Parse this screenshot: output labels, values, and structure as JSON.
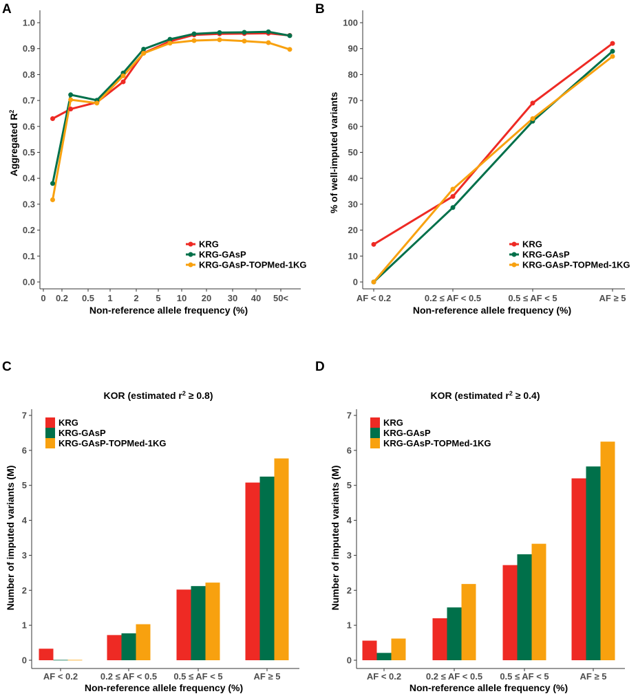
{
  "colors": {
    "KRG": "#ee2a24",
    "KRG-GAsP": "#00704a",
    "KRG-GAsP-TOPMed-1KG": "#f8a10f"
  },
  "chart_data": [
    {
      "panel": "A",
      "type": "line",
      "title": "",
      "xlabel": "Non-reference allele frequency (%)",
      "ylabel_base": "Aggregated R",
      "ylabel_sup": "2",
      "ylim": [
        0,
        1
      ],
      "yticks": [
        "0.0",
        "0.1",
        "0.2",
        "0.3",
        "0.4",
        "0.5",
        "0.6",
        "0.7",
        "0.8",
        "0.9",
        "1.0"
      ],
      "xticks": [
        "0",
        "0.2",
        "0.5",
        "1",
        "2",
        "5",
        "10",
        "20",
        "30",
        "40",
        "50<"
      ],
      "x": [
        "0.1",
        "0.3",
        "0.7",
        "1.5",
        "3",
        "7.5",
        "15",
        "25",
        "35",
        "45",
        "55"
      ],
      "series": [
        {
          "name": "KRG",
          "values": [
            0.63,
            0.667,
            0.693,
            0.772,
            0.883,
            0.928,
            0.953,
            0.957,
            0.958,
            0.959,
            0.951
          ]
        },
        {
          "name": "KRG-GAsP",
          "values": [
            0.38,
            0.722,
            0.701,
            0.806,
            0.898,
            0.936,
            0.957,
            0.962,
            0.963,
            0.965,
            0.95
          ]
        },
        {
          "name": "KRG-GAsP-TOPMed-1KG",
          "values": [
            0.317,
            0.703,
            0.69,
            0.795,
            0.882,
            0.921,
            0.931,
            0.934,
            0.929,
            0.923,
            0.897
          ]
        }
      ],
      "legend": [
        "KRG",
        "KRG-GAsP",
        "KRG-GAsP-TOPMed-1KG"
      ]
    },
    {
      "panel": "B",
      "type": "line",
      "title": "",
      "xlabel": "Non-reference allele frequency (%)",
      "ylabel": "% of well-imputed variants",
      "ylim": [
        0,
        100
      ],
      "yticks": [
        "0",
        "10",
        "20",
        "30",
        "40",
        "50",
        "60",
        "70",
        "80",
        "90",
        "100"
      ],
      "categories": [
        "AF < 0.2",
        "0.2 ≤ AF < 0.5",
        "0.5 ≤ AF < 5",
        "AF ≥ 5"
      ],
      "series": [
        {
          "name": "KRG",
          "values": [
            14.5,
            33,
            69,
            92
          ]
        },
        {
          "name": "KRG-GAsP",
          "values": [
            0,
            28.7,
            62,
            89
          ]
        },
        {
          "name": "KRG-GAsP-TOPMed-1KG",
          "values": [
            0,
            35.8,
            63,
            87
          ]
        }
      ],
      "legend": [
        "KRG",
        "KRG-GAsP",
        "KRG-GAsP-TOPMed-1KG"
      ]
    },
    {
      "panel": "C",
      "type": "bar",
      "title_prefix": "KOR (estimated r",
      "title_sup": "2",
      "title_suffix": " ≥ 0.8)",
      "xlabel": "Non-reference allele frequency (%)",
      "ylabel": "Number of imputed variants (M)",
      "ylim": [
        0,
        7
      ],
      "yticks": [
        "0",
        "1",
        "2",
        "3",
        "4",
        "5",
        "6",
        "7"
      ],
      "categories": [
        "AF < 0.2",
        "0.2 ≤ AF < 0.5",
        "0.5 ≤ AF < 5",
        "AF ≥ 5"
      ],
      "series": [
        {
          "name": "KRG",
          "values": [
            0.33,
            0.72,
            2.02,
            5.08
          ]
        },
        {
          "name": "KRG-GAsP",
          "values": [
            0.01,
            0.77,
            2.12,
            5.25
          ]
        },
        {
          "name": "KRG-GAsP-TOPMed-1KG",
          "values": [
            0.01,
            1.03,
            2.22,
            5.77
          ]
        }
      ],
      "legend": [
        "KRG",
        "KRG-GAsP",
        "KRG-GAsP-TOPMed-1KG"
      ]
    },
    {
      "panel": "D",
      "type": "bar",
      "title_prefix": "KOR (estimated r",
      "title_sup": "2",
      "title_suffix": " ≥ 0.4)",
      "xlabel": "Non-reference allele frequency (%)",
      "ylabel": "Number of imputed variants (M)",
      "ylim": [
        0,
        7
      ],
      "yticks": [
        "0",
        "1",
        "2",
        "3",
        "4",
        "5",
        "6",
        "7"
      ],
      "categories": [
        "AF < 0.2",
        "0.2 ≤ AF < 0.5",
        "0.5 ≤ AF < 5",
        "AF ≥ 5"
      ],
      "series": [
        {
          "name": "KRG",
          "values": [
            0.56,
            1.2,
            2.72,
            5.2
          ]
        },
        {
          "name": "KRG-GAsP",
          "values": [
            0.21,
            1.51,
            3.03,
            5.54
          ]
        },
        {
          "name": "KRG-GAsP-TOPMed-1KG",
          "values": [
            0.62,
            2.18,
            3.33,
            6.25
          ]
        }
      ],
      "legend": [
        "KRG",
        "KRG-GAsP",
        "KRG-GAsP-TOPMed-1KG"
      ]
    }
  ]
}
